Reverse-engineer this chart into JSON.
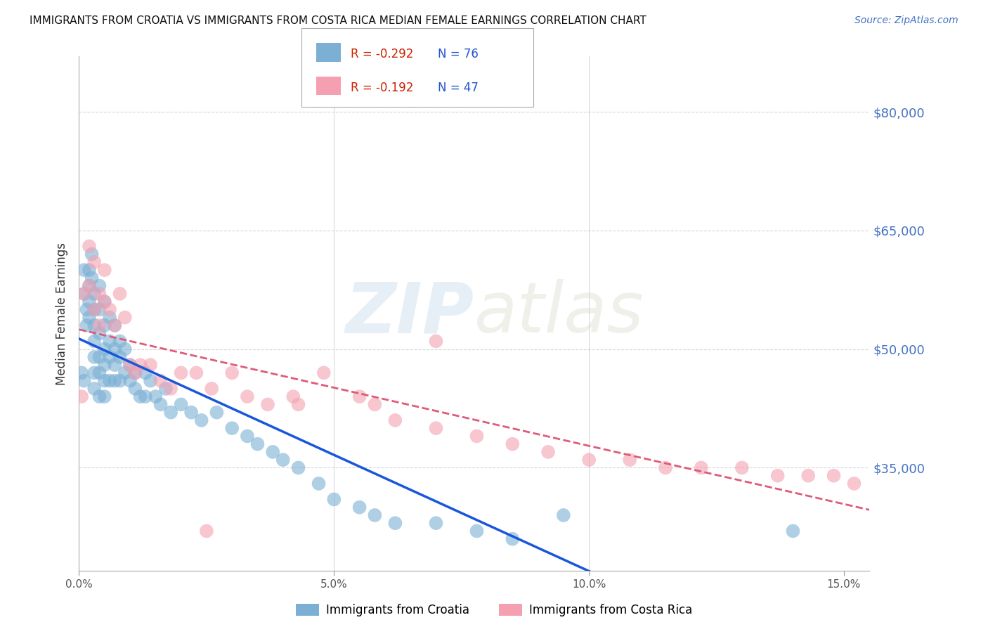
{
  "title": "IMMIGRANTS FROM CROATIA VS IMMIGRANTS FROM COSTA RICA MEDIAN FEMALE EARNINGS CORRELATION CHART",
  "source": "Source: ZipAtlas.com",
  "ylabel": "Median Female Earnings",
  "ytick_labels": [
    "$80,000",
    "$65,000",
    "$50,000",
    "$35,000"
  ],
  "ytick_values": [
    80000,
    65000,
    50000,
    35000
  ],
  "ylim": [
    22000,
    87000
  ],
  "xlim": [
    0.0,
    0.155
  ],
  "croatia_color": "#7bafd4",
  "costa_rica_color": "#f4a0b0",
  "croatia_line_color": "#1a56db",
  "costa_rica_line_color": "#e05a7a",
  "legend_R_croatia": "R = -0.292",
  "legend_N_croatia": "N = 76",
  "legend_R_costa_rica": "R = -0.192",
  "legend_N_costa_rica": "N = 47",
  "watermark": "ZIPatlas",
  "background_color": "#ffffff",
  "grid_color": "#cccccc",
  "croatia_x": [
    0.0005,
    0.001,
    0.001,
    0.001,
    0.0015,
    0.0015,
    0.002,
    0.002,
    0.002,
    0.002,
    0.0025,
    0.0025,
    0.003,
    0.003,
    0.003,
    0.003,
    0.003,
    0.003,
    0.003,
    0.004,
    0.004,
    0.004,
    0.004,
    0.004,
    0.004,
    0.005,
    0.005,
    0.005,
    0.005,
    0.005,
    0.005,
    0.006,
    0.006,
    0.006,
    0.006,
    0.007,
    0.007,
    0.007,
    0.007,
    0.008,
    0.008,
    0.008,
    0.009,
    0.009,
    0.01,
    0.01,
    0.011,
    0.011,
    0.012,
    0.013,
    0.013,
    0.014,
    0.015,
    0.016,
    0.017,
    0.018,
    0.02,
    0.022,
    0.024,
    0.027,
    0.03,
    0.033,
    0.035,
    0.038,
    0.04,
    0.043,
    0.047,
    0.05,
    0.055,
    0.058,
    0.062,
    0.07,
    0.078,
    0.085,
    0.095,
    0.14
  ],
  "croatia_y": [
    47000,
    60000,
    57000,
    46000,
    55000,
    53000,
    60000,
    58000,
    56000,
    54000,
    62000,
    59000,
    57000,
    55000,
    53000,
    51000,
    49000,
    47000,
    45000,
    58000,
    55000,
    52000,
    49000,
    47000,
    44000,
    56000,
    53000,
    50000,
    48000,
    46000,
    44000,
    54000,
    51000,
    49000,
    46000,
    53000,
    50000,
    48000,
    46000,
    51000,
    49000,
    46000,
    50000,
    47000,
    48000,
    46000,
    47000,
    45000,
    44000,
    47000,
    44000,
    46000,
    44000,
    43000,
    45000,
    42000,
    43000,
    42000,
    41000,
    42000,
    40000,
    39000,
    38000,
    37000,
    36000,
    35000,
    33000,
    31000,
    30000,
    29000,
    28000,
    28000,
    27000,
    26000,
    29000,
    27000
  ],
  "costa_rica_x": [
    0.0005,
    0.001,
    0.002,
    0.002,
    0.003,
    0.003,
    0.004,
    0.004,
    0.005,
    0.005,
    0.006,
    0.007,
    0.008,
    0.009,
    0.01,
    0.011,
    0.012,
    0.014,
    0.016,
    0.018,
    0.02,
    0.023,
    0.026,
    0.03,
    0.033,
    0.037,
    0.042,
    0.048,
    0.055,
    0.062,
    0.07,
    0.078,
    0.085,
    0.092,
    0.1,
    0.108,
    0.115,
    0.122,
    0.13,
    0.137,
    0.143,
    0.148,
    0.152,
    0.058,
    0.025,
    0.043,
    0.07
  ],
  "costa_rica_y": [
    44000,
    57000,
    63000,
    58000,
    61000,
    55000,
    57000,
    53000,
    60000,
    56000,
    55000,
    53000,
    57000,
    54000,
    48000,
    47000,
    48000,
    48000,
    46000,
    45000,
    47000,
    47000,
    45000,
    47000,
    44000,
    43000,
    44000,
    47000,
    44000,
    41000,
    40000,
    39000,
    38000,
    37000,
    36000,
    36000,
    35000,
    35000,
    35000,
    34000,
    34000,
    34000,
    33000,
    43000,
    27000,
    43000,
    51000
  ]
}
